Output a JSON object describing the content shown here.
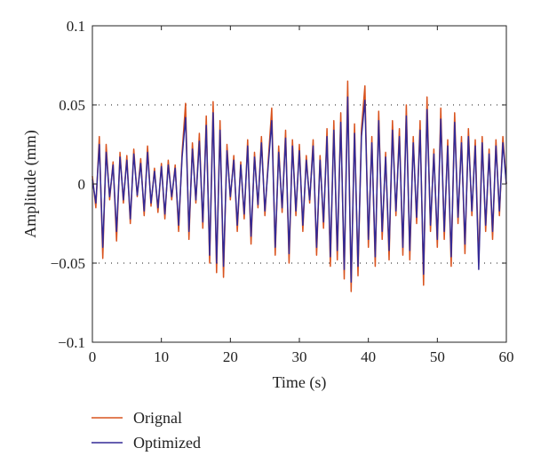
{
  "chart_data": {
    "type": "line",
    "xlabel": "Time (s)",
    "ylabel": "Amplitude (mm)",
    "xlim": [
      0,
      60
    ],
    "ylim": [
      -0.1,
      0.1
    ],
    "xticks": [
      0,
      10,
      20,
      30,
      40,
      50,
      60
    ],
    "yticks": [
      0.1,
      0.05,
      0,
      -0.05,
      -0.1
    ],
    "ytick_labels": [
      "0.1",
      "0.05",
      "0",
      "−0.05",
      "−0.1"
    ],
    "gridlines_y": [
      0.05,
      -0.05
    ],
    "grid": "dotted horizontal at ±0.05",
    "legend_position": "bottom-left",
    "series": [
      {
        "name": "Orignal",
        "color": "#d9531e",
        "x": [
          0,
          0.5,
          1,
          1.5,
          2,
          2.5,
          3,
          3.5,
          4,
          4.5,
          5,
          5.5,
          6,
          6.5,
          7,
          7.5,
          8,
          8.5,
          9,
          9.5,
          10,
          10.5,
          11,
          11.5,
          12,
          12.5,
          13,
          13.5,
          14,
          14.5,
          15,
          15.5,
          16,
          16.5,
          17,
          17.5,
          18,
          18.5,
          19,
          19.5,
          20,
          20.5,
          21,
          21.5,
          22,
          22.5,
          23,
          23.5,
          24,
          24.5,
          25,
          25.5,
          26,
          26.5,
          27,
          27.5,
          28,
          28.5,
          29,
          29.5,
          30,
          30.5,
          31,
          31.5,
          32,
          32.5,
          33,
          33.5,
          34,
          34.5,
          35,
          35.5,
          36,
          36.5,
          37,
          37.5,
          38,
          38.5,
          39,
          39.5,
          40,
          40.5,
          41,
          41.5,
          42,
          42.5,
          43,
          43.5,
          44,
          44.5,
          45,
          45.5,
          46,
          46.5,
          47,
          47.5,
          48,
          48.5,
          49,
          49.5,
          50,
          50.5,
          51,
          51.5,
          52,
          52.5,
          53,
          53.5,
          54,
          54.5,
          55,
          55.5,
          56,
          56.5,
          57,
          57.5,
          58,
          58.5,
          59,
          59.5,
          60
        ],
        "y": [
          0.005,
          -0.015,
          0.03,
          -0.047,
          0.025,
          -0.01,
          0.014,
          -0.036,
          0.02,
          -0.012,
          0.018,
          -0.025,
          0.022,
          -0.008,
          0.016,
          -0.02,
          0.024,
          -0.014,
          0.01,
          -0.018,
          0.013,
          -0.022,
          0.015,
          -0.01,
          0.012,
          -0.03,
          0.02,
          0.051,
          -0.035,
          0.026,
          -0.012,
          0.032,
          -0.028,
          0.043,
          -0.05,
          0.052,
          -0.056,
          0.04,
          -0.059,
          0.025,
          -0.01,
          0.018,
          -0.03,
          0.014,
          -0.022,
          0.028,
          -0.038,
          0.02,
          -0.015,
          0.03,
          -0.02,
          0.015,
          0.048,
          -0.045,
          0.024,
          -0.018,
          0.034,
          -0.05,
          0.028,
          -0.02,
          0.025,
          -0.03,
          0.018,
          -0.012,
          0.028,
          -0.045,
          0.018,
          -0.028,
          0.035,
          -0.052,
          0.04,
          -0.048,
          0.045,
          -0.06,
          0.065,
          -0.068,
          0.038,
          -0.058,
          0.035,
          0.062,
          -0.04,
          0.03,
          -0.052,
          0.046,
          -0.035,
          0.02,
          -0.048,
          0.04,
          -0.02,
          0.035,
          -0.045,
          0.05,
          -0.048,
          0.03,
          -0.025,
          0.04,
          -0.064,
          0.055,
          -0.03,
          0.022,
          -0.04,
          0.048,
          -0.035,
          0.028,
          -0.052,
          0.045,
          -0.025,
          0.03,
          -0.044,
          0.035,
          -0.02,
          0.028,
          -0.05,
          0.03,
          -0.03,
          0.022,
          -0.035,
          0.028,
          -0.02,
          0.03,
          0.0
        ]
      },
      {
        "name": "Optimized",
        "color": "#332a96",
        "x": [
          0,
          0.5,
          1,
          1.5,
          2,
          2.5,
          3,
          3.5,
          4,
          4.5,
          5,
          5.5,
          6,
          6.5,
          7,
          7.5,
          8,
          8.5,
          9,
          9.5,
          10,
          10.5,
          11,
          11.5,
          12,
          12.5,
          13,
          13.5,
          14,
          14.5,
          15,
          15.5,
          16,
          16.5,
          17,
          17.5,
          18,
          18.5,
          19,
          19.5,
          20,
          20.5,
          21,
          21.5,
          22,
          22.5,
          23,
          23.5,
          24,
          24.5,
          25,
          25.5,
          26,
          26.5,
          27,
          27.5,
          28,
          28.5,
          29,
          29.5,
          30,
          30.5,
          31,
          31.5,
          32,
          32.5,
          33,
          33.5,
          34,
          34.5,
          35,
          35.5,
          36,
          36.5,
          37,
          37.5,
          38,
          38.5,
          39,
          39.5,
          40,
          40.5,
          41,
          41.5,
          42,
          42.5,
          43,
          43.5,
          44,
          44.5,
          45,
          45.5,
          46,
          46.5,
          47,
          47.5,
          48,
          48.5,
          49,
          49.5,
          50,
          50.5,
          51,
          51.5,
          52,
          52.5,
          53,
          53.5,
          54,
          54.5,
          55,
          55.5,
          56,
          56.5,
          57,
          57.5,
          58,
          58.5,
          59,
          59.5,
          60
        ],
        "y": [
          0.003,
          -0.012,
          0.025,
          -0.04,
          0.02,
          -0.008,
          0.012,
          -0.03,
          0.017,
          -0.01,
          0.015,
          -0.022,
          0.019,
          -0.007,
          0.013,
          -0.017,
          0.02,
          -0.012,
          0.008,
          -0.015,
          0.011,
          -0.019,
          0.012,
          -0.008,
          0.01,
          -0.026,
          0.017,
          0.042,
          -0.03,
          0.022,
          -0.01,
          0.027,
          -0.024,
          0.037,
          -0.045,
          0.045,
          -0.05,
          0.034,
          -0.052,
          0.021,
          -0.008,
          0.015,
          -0.026,
          0.012,
          -0.019,
          0.024,
          -0.033,
          0.017,
          -0.013,
          0.026,
          -0.017,
          0.012,
          0.04,
          -0.04,
          0.02,
          -0.015,
          0.029,
          -0.044,
          0.024,
          -0.017,
          0.021,
          -0.026,
          0.015,
          -0.01,
          0.024,
          -0.04,
          0.015,
          -0.024,
          0.03,
          -0.046,
          0.034,
          -0.042,
          0.039,
          -0.054,
          0.055,
          -0.062,
          0.032,
          -0.052,
          0.03,
          0.053,
          -0.035,
          0.026,
          -0.046,
          0.04,
          -0.03,
          0.017,
          -0.042,
          0.034,
          -0.017,
          0.03,
          -0.04,
          0.043,
          -0.042,
          0.026,
          -0.021,
          0.034,
          -0.057,
          0.047,
          -0.026,
          0.019,
          -0.035,
          0.041,
          -0.03,
          0.024,
          -0.046,
          0.039,
          -0.021,
          0.026,
          -0.038,
          0.03,
          -0.017,
          0.024,
          -0.054,
          0.026,
          -0.026,
          0.019,
          -0.03,
          0.024,
          -0.017,
          0.026,
          0.0
        ]
      }
    ]
  }
}
